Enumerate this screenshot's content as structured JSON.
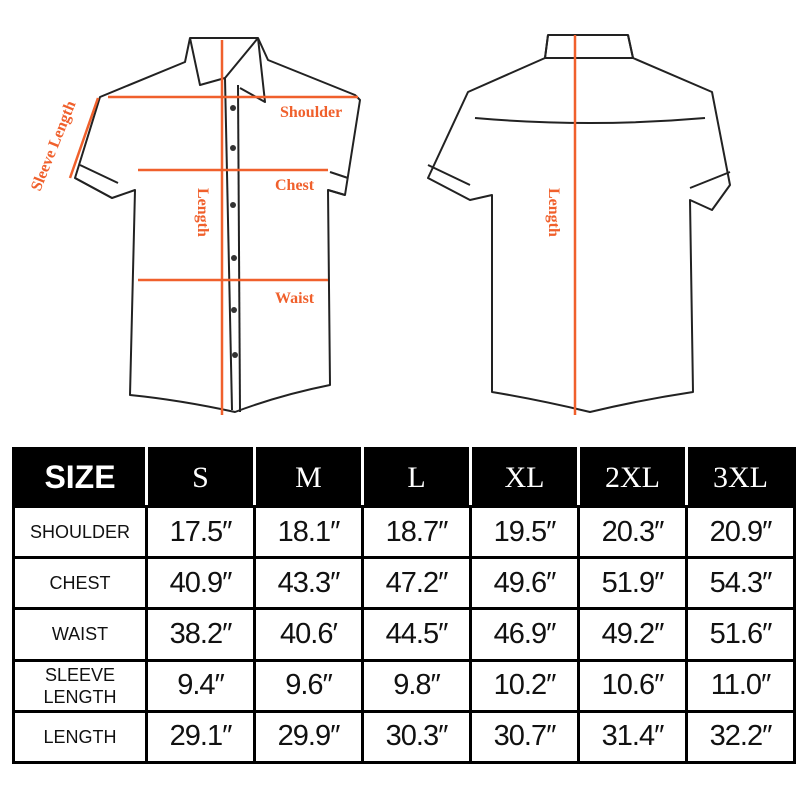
{
  "labels": {
    "front": {
      "sleeve_length": "Sleeve Length",
      "shoulder": "Shoulder",
      "chest": "Chest",
      "length": "Length",
      "waist": "Waist"
    },
    "back": {
      "length": "Length"
    }
  },
  "colors": {
    "measure": "#f0602c",
    "header_bg": "#000000"
  },
  "table": {
    "headers": [
      "SIZE",
      "S",
      "M",
      "L",
      "XL",
      "2XL",
      "3XL"
    ],
    "rows": [
      {
        "label": "SHOULDER",
        "values": [
          "17.5″",
          "18.1″",
          "18.7″",
          "19.5″",
          "20.3″",
          "20.9″"
        ]
      },
      {
        "label": "CHEST",
        "values": [
          "40.9″",
          "43.3″",
          "47.2″",
          "49.6″",
          "51.9″",
          "54.3″"
        ]
      },
      {
        "label": "WAIST",
        "values": [
          "38.2″",
          "40.6′",
          "44.5″",
          "46.9″",
          "49.2″",
          "51.6″"
        ]
      },
      {
        "label": "SLEEVE LENGTH",
        "values": [
          "9.4″",
          "9.6″",
          "9.8″",
          "10.2″",
          "10.6″",
          "11.0″"
        ]
      },
      {
        "label": "LENGTH",
        "values": [
          "29.1″",
          "29.9″",
          "30.3″",
          "30.7″",
          "31.4″",
          "32.2″"
        ]
      }
    ]
  }
}
